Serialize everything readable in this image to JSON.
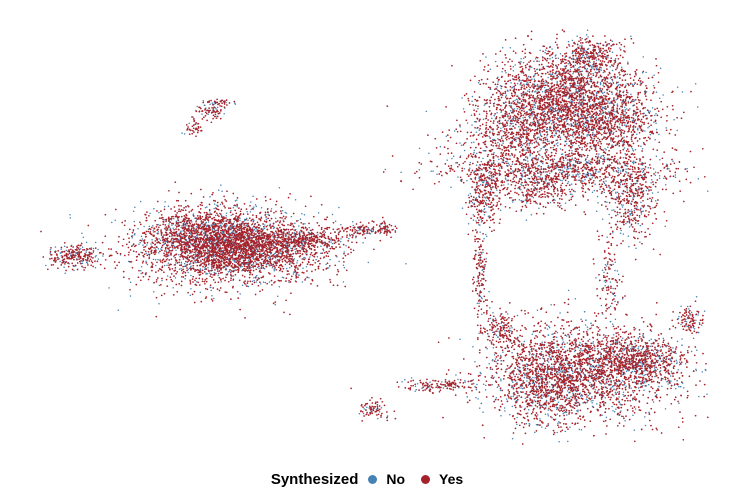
{
  "chart_data": {
    "type": "scatter",
    "title": "",
    "xlabel": "",
    "ylabel": "",
    "axes_visible": false,
    "grid": false,
    "legend_position": "bottom",
    "legend": {
      "title": "Synthesized",
      "entries": [
        {
          "label": "No",
          "color": "#4682b4"
        },
        {
          "label": "Yes",
          "color": "#a6222a"
        }
      ]
    },
    "series": [
      {
        "name": "No",
        "color": "#4682b4"
      },
      {
        "name": "Yes",
        "color": "#a6222a"
      }
    ]
  }
}
